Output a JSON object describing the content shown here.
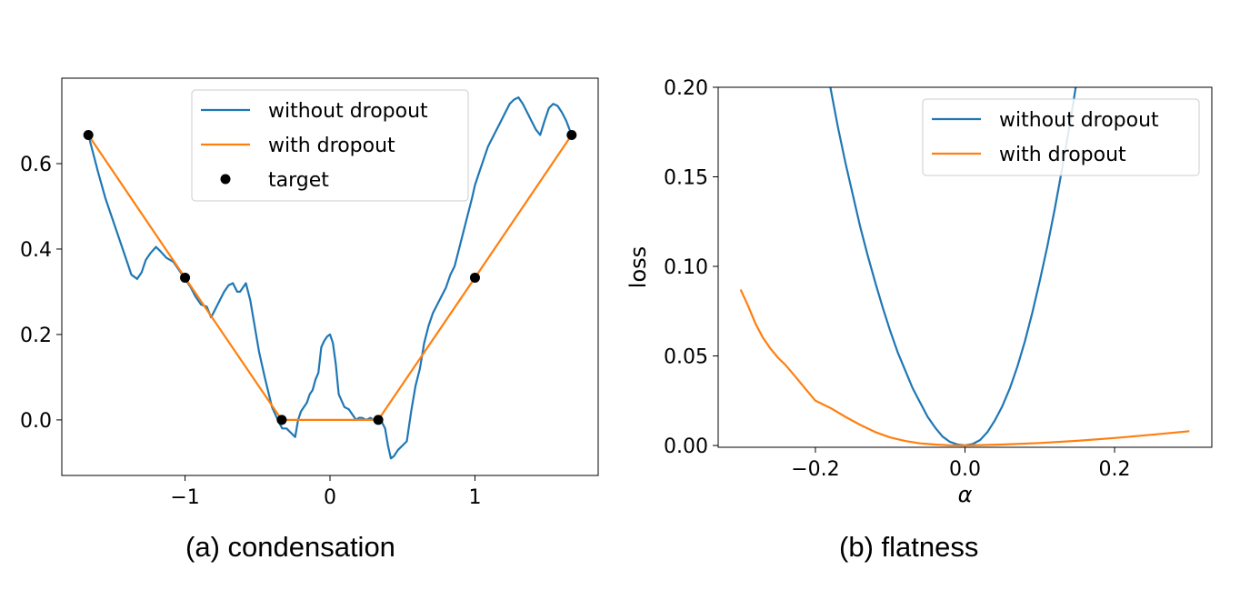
{
  "captions": {
    "a": "(a) condensation",
    "b": "(b) flatness"
  },
  "colors": {
    "blue": "#1f77b4",
    "orange": "#ff7f0e",
    "target": "#000000"
  },
  "chart_data": [
    {
      "type": "line",
      "title": "",
      "xlabel": "",
      "ylabel": "",
      "xlim": [
        -1.85,
        1.85
      ],
      "ylim": [
        -0.13,
        0.8
      ],
      "xticks": [
        -1,
        0,
        1
      ],
      "xtick_labels": [
        "−1",
        "0",
        "1"
      ],
      "yticks": [
        0.0,
        0.2,
        0.4,
        0.6
      ],
      "ytick_labels": [
        "0.0",
        "0.2",
        "0.4",
        "0.6"
      ],
      "grid": false,
      "legend_position": "top-right",
      "series": [
        {
          "name": "without dropout",
          "color": "#1f77b4",
          "kind": "line",
          "x": [
            -1.667,
            -1.6,
            -1.55,
            -1.5,
            -1.45,
            -1.4,
            -1.37,
            -1.33,
            -1.3,
            -1.27,
            -1.24,
            -1.2,
            -1.17,
            -1.13,
            -1.08,
            -1.03,
            -1.0,
            -0.96,
            -0.93,
            -0.89,
            -0.85,
            -0.82,
            -0.79,
            -0.76,
            -0.73,
            -0.7,
            -0.67,
            -0.64,
            -0.62,
            -0.58,
            -0.55,
            -0.52,
            -0.49,
            -0.45,
            -0.4,
            -0.36,
            -0.33,
            -0.3,
            -0.27,
            -0.24,
            -0.22,
            -0.2,
            -0.18,
            -0.16,
            -0.14,
            -0.12,
            -0.1,
            -0.08,
            -0.06,
            -0.04,
            -0.02,
            0.0,
            0.02,
            0.04,
            0.06,
            0.08,
            0.1,
            0.13,
            0.15,
            0.18,
            0.2,
            0.22,
            0.25,
            0.28,
            0.3,
            0.33,
            0.35,
            0.38,
            0.4,
            0.42,
            0.44,
            0.47,
            0.5,
            0.53,
            0.56,
            0.59,
            0.62,
            0.65,
            0.68,
            0.71,
            0.74,
            0.77,
            0.8,
            0.83,
            0.86,
            0.89,
            0.92,
            0.95,
            0.98,
            1.0,
            1.03,
            1.06,
            1.09,
            1.12,
            1.15,
            1.18,
            1.21,
            1.24,
            1.27,
            1.3,
            1.33,
            1.36,
            1.39,
            1.42,
            1.45,
            1.48,
            1.51,
            1.54,
            1.57,
            1.6,
            1.63,
            1.667
          ],
          "y": [
            0.667,
            0.58,
            0.52,
            0.47,
            0.42,
            0.37,
            0.34,
            0.33,
            0.345,
            0.375,
            0.39,
            0.405,
            0.395,
            0.38,
            0.37,
            0.345,
            0.33,
            0.31,
            0.29,
            0.27,
            0.265,
            0.24,
            0.26,
            0.28,
            0.3,
            0.315,
            0.32,
            0.3,
            0.3,
            0.32,
            0.28,
            0.22,
            0.16,
            0.1,
            0.03,
            0.0,
            -0.02,
            -0.02,
            -0.03,
            -0.04,
            0.0,
            0.02,
            0.03,
            0.04,
            0.06,
            0.07,
            0.095,
            0.11,
            0.17,
            0.185,
            0.195,
            0.2,
            0.18,
            0.13,
            0.06,
            0.045,
            0.03,
            0.025,
            0.015,
            0.0,
            0.005,
            0.005,
            0.0,
            0.005,
            0.0,
            0.0,
            0.0,
            -0.02,
            -0.06,
            -0.09,
            -0.085,
            -0.07,
            -0.06,
            -0.05,
            0.02,
            0.08,
            0.12,
            0.18,
            0.22,
            0.25,
            0.27,
            0.29,
            0.31,
            0.34,
            0.36,
            0.4,
            0.44,
            0.48,
            0.52,
            0.55,
            0.58,
            0.61,
            0.64,
            0.66,
            0.68,
            0.7,
            0.72,
            0.74,
            0.75,
            0.755,
            0.74,
            0.72,
            0.7,
            0.68,
            0.667,
            0.7,
            0.73,
            0.74,
            0.735,
            0.72,
            0.7,
            0.667
          ]
        },
        {
          "name": "with dropout",
          "color": "#ff7f0e",
          "kind": "line",
          "x": [
            -1.667,
            -1.0,
            -0.333,
            0.333,
            1.0,
            1.667
          ],
          "y": [
            0.667,
            0.333,
            0.0,
            0.0,
            0.333,
            0.667
          ]
        },
        {
          "name": "target",
          "color": "#000000",
          "kind": "scatter",
          "x": [
            -1.667,
            -1.0,
            -0.333,
            0.333,
            1.0,
            1.667
          ],
          "y": [
            0.667,
            0.333,
            0.0,
            0.0,
            0.333,
            0.667
          ]
        }
      ]
    },
    {
      "type": "line",
      "title": "",
      "xlabel": "α",
      "ylabel": "loss",
      "xlim": [
        -0.33,
        0.33
      ],
      "ylim": [
        -0.001,
        0.2
      ],
      "xticks": [
        -0.2,
        0.0,
        0.2
      ],
      "xtick_labels": [
        "−0.2",
        "0.0",
        "0.2"
      ],
      "yticks": [
        0.0,
        0.05,
        0.1,
        0.15,
        0.2
      ],
      "ytick_labels": [
        "0.00",
        "0.05",
        "0.10",
        "0.15",
        "0.20"
      ],
      "grid": false,
      "legend_position": "top-right",
      "series": [
        {
          "name": "without dropout",
          "color": "#1f77b4",
          "kind": "line",
          "x": [
            -0.18,
            -0.17,
            -0.16,
            -0.15,
            -0.14,
            -0.13,
            -0.12,
            -0.11,
            -0.1,
            -0.09,
            -0.08,
            -0.07,
            -0.06,
            -0.05,
            -0.04,
            -0.03,
            -0.02,
            -0.01,
            0.0,
            0.01,
            0.02,
            0.03,
            0.04,
            0.05,
            0.06,
            0.07,
            0.08,
            0.09,
            0.1,
            0.11,
            0.12,
            0.13,
            0.14,
            0.15
          ],
          "y": [
            0.2,
            0.178,
            0.158,
            0.14,
            0.122,
            0.106,
            0.091,
            0.077,
            0.064,
            0.052,
            0.042,
            0.032,
            0.024,
            0.016,
            0.01,
            0.005,
            0.002,
            0.0005,
            0.0,
            0.0008,
            0.003,
            0.0075,
            0.014,
            0.022,
            0.032,
            0.044,
            0.058,
            0.074,
            0.092,
            0.111,
            0.132,
            0.155,
            0.179,
            0.205
          ]
        },
        {
          "name": "with dropout",
          "color": "#ff7f0e",
          "kind": "line",
          "x": [
            -0.3,
            -0.29,
            -0.28,
            -0.27,
            -0.26,
            -0.25,
            -0.24,
            -0.23,
            -0.22,
            -0.21,
            -0.2,
            -0.18,
            -0.16,
            -0.14,
            -0.12,
            -0.1,
            -0.08,
            -0.06,
            -0.04,
            -0.02,
            0.0,
            0.05,
            0.1,
            0.15,
            0.2,
            0.25,
            0.3
          ],
          "y": [
            0.087,
            0.078,
            0.068,
            0.06,
            0.054,
            0.049,
            0.045,
            0.04,
            0.035,
            0.03,
            0.025,
            0.021,
            0.016,
            0.0115,
            0.0075,
            0.0045,
            0.0025,
            0.0012,
            0.0005,
            0.0001,
            0.0,
            0.0005,
            0.0014,
            0.0026,
            0.0042,
            0.006,
            0.008
          ]
        }
      ]
    }
  ]
}
